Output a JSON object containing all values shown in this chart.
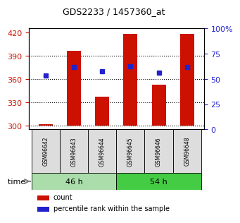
{
  "title": "GDS2233 / 1457360_at",
  "samples": [
    "GSM96642",
    "GSM96643",
    "GSM96644",
    "GSM96645",
    "GSM96646",
    "GSM96648"
  ],
  "bar_values": [
    302,
    396,
    337,
    418,
    353,
    418
  ],
  "percentile_values": [
    364,
    375,
    370,
    376,
    368,
    375
  ],
  "bar_color": "#cc1100",
  "dot_color": "#2222cc",
  "ylim_left": [
    295,
    425
  ],
  "ylim_right": [
    0,
    100
  ],
  "yticks_left": [
    300,
    330,
    360,
    390,
    420
  ],
  "yticks_right": [
    0,
    25,
    50,
    75,
    100
  ],
  "ytick_labels_right": [
    "0",
    "25",
    "50",
    "75",
    "100%"
  ],
  "groups": [
    {
      "label": "46 h",
      "indices": [
        0,
        1,
        2
      ],
      "color": "#aaddaa"
    },
    {
      "label": "54 h",
      "indices": [
        3,
        4,
        5
      ],
      "color": "#44cc44"
    }
  ],
  "time_label": "time",
  "legend_items": [
    {
      "label": "count",
      "color": "#cc1100"
    },
    {
      "label": "percentile rank within the sample",
      "color": "#2222cc"
    }
  ],
  "background_color": "#ffffff",
  "plot_bg_color": "#ffffff",
  "bar_width": 0.5,
  "base_value": 300
}
